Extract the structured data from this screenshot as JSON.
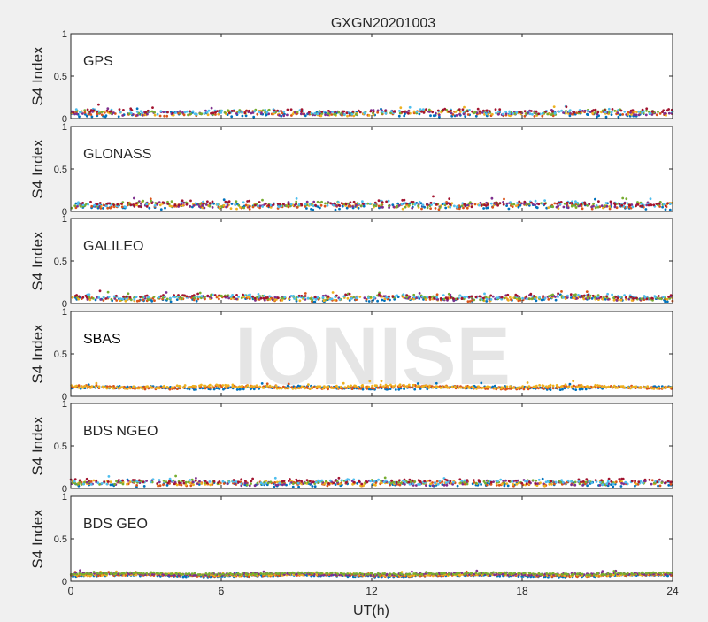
{
  "chart_data": {
    "type": "scatter",
    "title": "GXGN20201003",
    "xlabel": "UT(h)",
    "ylabel": "S4 Index",
    "xlim": [
      0,
      24
    ],
    "xticks": [
      "0",
      "6",
      "12",
      "18",
      "24"
    ],
    "ylim": [
      0,
      1
    ],
    "yticks": [
      "0",
      "0.5",
      "1"
    ],
    "grid": false,
    "watermark": "IONISE",
    "colors": [
      "#0072BD",
      "#D95319",
      "#EDB120",
      "#7E2F8E",
      "#77AC30",
      "#4DBEEE",
      "#A2142F"
    ],
    "panels": [
      {
        "label": "GPS",
        "series_count": 7,
        "base_s4": 0.07,
        "spread_s4": 0.04,
        "max_s4": 0.2,
        "highlight": false
      },
      {
        "label": "GLONASS",
        "series_count": 7,
        "base_s4": 0.08,
        "spread_s4": 0.05,
        "max_s4": 0.25,
        "highlight": false
      },
      {
        "label": "GALILEO",
        "series_count": 7,
        "base_s4": 0.07,
        "spread_s4": 0.04,
        "max_s4": 0.22,
        "highlight": false
      },
      {
        "label": "SBAS",
        "series_count": 3,
        "base_s4": 0.11,
        "spread_s4": 0.03,
        "max_s4": 0.2,
        "highlight": true
      },
      {
        "label": "BDS NGEO",
        "series_count": 7,
        "base_s4": 0.07,
        "spread_s4": 0.04,
        "max_s4": 0.18,
        "highlight": false
      },
      {
        "label": "BDS GEO",
        "series_count": 5,
        "base_s4": 0.08,
        "spread_s4": 0.02,
        "max_s4": 0.13,
        "highlight": false
      }
    ]
  }
}
